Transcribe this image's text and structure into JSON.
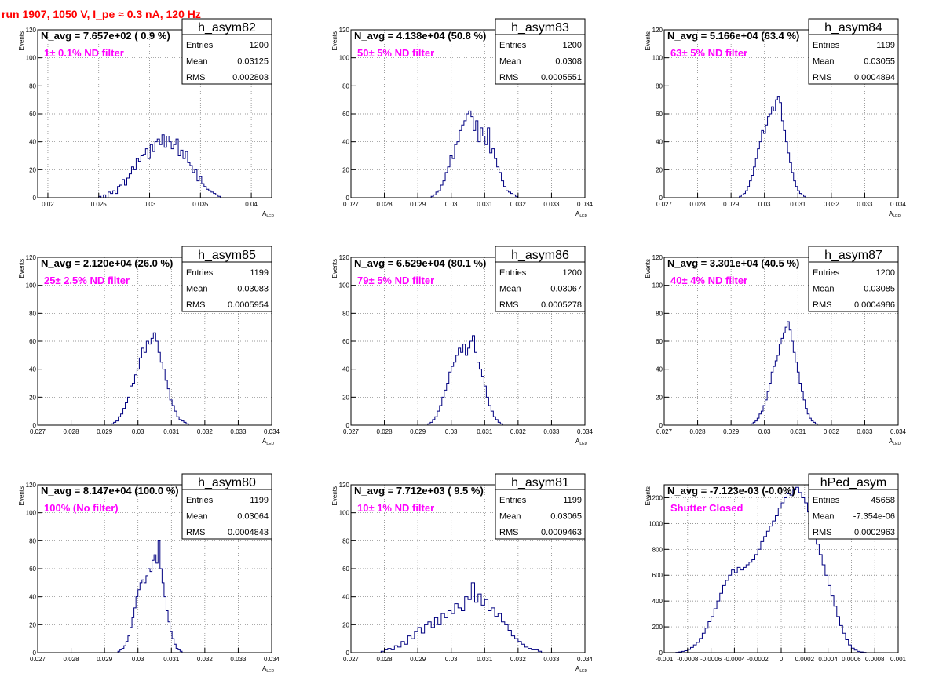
{
  "header": {
    "title": "run 1907,  1050 V, I_pe ≈ 0.3 nA, 120 Hz",
    "title_color": "#ff0000"
  },
  "colors": {
    "histogram": "#000080",
    "annotation": "#ff00ff",
    "grid": "#777777"
  },
  "chart_data": [
    {
      "type": "bar",
      "name": "h_asym82",
      "title": "N_avg = 7.657e+02 ( 0.9 %)",
      "annotation": "1± 0.1% ND filter",
      "xlabel": "A",
      "xlabel_sub": "LED",
      "ylabel": "Events",
      "xlim": [
        0.019,
        0.042
      ],
      "ylim": [
        0,
        120
      ],
      "xticks": [
        0.02,
        0.025,
        0.03,
        0.035,
        0.04
      ],
      "xtick_labels": [
        "0.02",
        "0.025",
        "0.03",
        "0.035",
        "0.04"
      ],
      "yticks": [
        0,
        20,
        40,
        60,
        80,
        100,
        120
      ],
      "ytick_labels": [
        "0",
        "20",
        "40",
        "60",
        "80",
        "100",
        "120"
      ],
      "stats": {
        "entries": "1200",
        "mean": "0.03125",
        "rms": "0.002803"
      },
      "bin_start": 0.025,
      "bin_width": 0.00023,
      "values": [
        1,
        0,
        2,
        0,
        4,
        3,
        5,
        3,
        8,
        9,
        13,
        9,
        14,
        17,
        22,
        20,
        28,
        26,
        30,
        31,
        35,
        28,
        38,
        33,
        40,
        42,
        38,
        45,
        36,
        44,
        40,
        35,
        38,
        42,
        30,
        34,
        28,
        33,
        25,
        23,
        18,
        20,
        12,
        15,
        10,
        8,
        6,
        5,
        4,
        3,
        2,
        1
      ]
    },
    {
      "type": "bar",
      "name": "h_asym83",
      "title": "N_avg = 4.138e+04 (50.8 %)",
      "annotation": "50± 5% ND filter",
      "xlabel": "A",
      "xlabel_sub": "LED",
      "ylabel": "Events",
      "xlim": [
        0.027,
        0.034
      ],
      "ylim": [
        0,
        120
      ],
      "xticks": [
        0.027,
        0.028,
        0.029,
        0.03,
        0.031,
        0.032,
        0.033,
        0.034
      ],
      "xtick_labels": [
        "0.027",
        "0.028",
        "0.029",
        "0.03",
        "0.031",
        "0.032",
        "0.033",
        "0.034"
      ],
      "yticks": [
        0,
        20,
        40,
        60,
        80,
        100,
        120
      ],
      "ytick_labels": [
        "0",
        "20",
        "40",
        "60",
        "80",
        "100",
        "120"
      ],
      "stats": {
        "entries": "1200",
        "mean": "0.0308",
        "rms": "0.0005551"
      },
      "bin_start": 0.0294,
      "bin_width": 7e-05,
      "values": [
        1,
        2,
        4,
        5,
        9,
        12,
        18,
        22,
        30,
        28,
        38,
        40,
        48,
        52,
        55,
        60,
        62,
        58,
        48,
        55,
        40,
        50,
        44,
        38,
        50,
        32,
        35,
        28,
        22,
        18,
        12,
        8,
        5,
        4,
        3,
        2,
        1
      ]
    },
    {
      "type": "bar",
      "name": "h_asym84",
      "title": "N_avg = 5.166e+04 (63.4 %)",
      "annotation": "63± 5% ND filter",
      "xlabel": "A",
      "xlabel_sub": "LED",
      "ylabel": "Events",
      "xlim": [
        0.027,
        0.034
      ],
      "ylim": [
        0,
        120
      ],
      "xticks": [
        0.027,
        0.028,
        0.029,
        0.03,
        0.031,
        0.032,
        0.033,
        0.034
      ],
      "xtick_labels": [
        "0.027",
        "0.028",
        "0.029",
        "0.03",
        "0.031",
        "0.032",
        "0.033",
        "0.034"
      ],
      "yticks": [
        0,
        20,
        40,
        60,
        80,
        100,
        120
      ],
      "ytick_labels": [
        "0",
        "20",
        "40",
        "60",
        "80",
        "100",
        "120"
      ],
      "stats": {
        "entries": "1199",
        "mean": "0.03055",
        "rms": "0.0004894"
      },
      "bin_start": 0.02925,
      "bin_width": 6e-05,
      "values": [
        1,
        2,
        3,
        5,
        8,
        12,
        16,
        22,
        28,
        35,
        40,
        48,
        46,
        52,
        58,
        60,
        65,
        62,
        70,
        72,
        68,
        55,
        48,
        40,
        32,
        25,
        18,
        12,
        8,
        5,
        3,
        2,
        1
      ]
    },
    {
      "type": "bar",
      "name": "h_asym85",
      "title": "N_avg = 2.120e+04 (26.0 %)",
      "annotation": "25± 2.5% ND filter",
      "xlabel": "A",
      "xlabel_sub": "LED",
      "ylabel": "Events",
      "xlim": [
        0.027,
        0.034
      ],
      "ylim": [
        0,
        120
      ],
      "xticks": [
        0.027,
        0.028,
        0.029,
        0.03,
        0.031,
        0.032,
        0.033,
        0.034
      ],
      "xtick_labels": [
        "0.027",
        "0.028",
        "0.029",
        "0.03",
        "0.031",
        "0.032",
        "0.033",
        "0.034"
      ],
      "yticks": [
        0,
        20,
        40,
        60,
        80,
        100,
        120
      ],
      "ytick_labels": [
        "0",
        "20",
        "40",
        "60",
        "80",
        "100",
        "120"
      ],
      "stats": {
        "entries": "1199",
        "mean": "0.03083",
        "rms": "0.0005954"
      },
      "bin_start": 0.0292,
      "bin_width": 7e-05,
      "values": [
        1,
        2,
        3,
        6,
        8,
        12,
        16,
        20,
        28,
        30,
        36,
        40,
        48,
        55,
        52,
        60,
        58,
        62,
        66,
        60,
        52,
        45,
        40,
        32,
        26,
        18,
        14,
        10,
        6,
        4,
        3,
        2,
        1
      ]
    },
    {
      "type": "bar",
      "name": "h_asym86",
      "title": "N_avg = 6.529e+04 (80.1 %)",
      "annotation": "79± 5% ND filter",
      "xlabel": "A",
      "xlabel_sub": "LED",
      "ylabel": "Events",
      "xlim": [
        0.027,
        0.034
      ],
      "ylim": [
        0,
        120
      ],
      "xticks": [
        0.027,
        0.028,
        0.029,
        0.03,
        0.031,
        0.032,
        0.033,
        0.034
      ],
      "xtick_labels": [
        "0.027",
        "0.028",
        "0.029",
        "0.03",
        "0.031",
        "0.032",
        "0.033",
        "0.034"
      ],
      "yticks": [
        0,
        20,
        40,
        60,
        80,
        100,
        120
      ],
      "ytick_labels": [
        "0",
        "20",
        "40",
        "60",
        "80",
        "100",
        "120"
      ],
      "stats": {
        "entries": "1200",
        "mean": "0.03067",
        "rms": "0.0005278"
      },
      "bin_start": 0.0293,
      "bin_width": 7e-05,
      "values": [
        1,
        2,
        4,
        6,
        10,
        14,
        20,
        25,
        30,
        38,
        42,
        45,
        50,
        55,
        52,
        58,
        50,
        55,
        60,
        64,
        52,
        45,
        40,
        35,
        28,
        20,
        14,
        10,
        6,
        4,
        2,
        1
      ]
    },
    {
      "type": "bar",
      "name": "h_asym87",
      "title": "N_avg = 3.301e+04 (40.5 %)",
      "annotation": "40± 4% ND filter",
      "xlabel": "A",
      "xlabel_sub": "LED",
      "ylabel": "Events",
      "xlim": [
        0.027,
        0.034
      ],
      "ylim": [
        0,
        120
      ],
      "xticks": [
        0.027,
        0.028,
        0.029,
        0.03,
        0.031,
        0.032,
        0.033,
        0.034
      ],
      "xtick_labels": [
        "0.027",
        "0.028",
        "0.029",
        "0.03",
        "0.031",
        "0.032",
        "0.033",
        "0.034"
      ],
      "yticks": [
        0,
        20,
        40,
        60,
        80,
        100,
        120
      ],
      "ytick_labels": [
        "0",
        "20",
        "40",
        "60",
        "80",
        "100",
        "120"
      ],
      "stats": {
        "entries": "1200",
        "mean": "0.03085",
        "rms": "0.0004986"
      },
      "bin_start": 0.0296,
      "bin_width": 6e-05,
      "values": [
        1,
        2,
        3,
        5,
        8,
        10,
        14,
        18,
        24,
        30,
        38,
        42,
        46,
        50,
        58,
        62,
        66,
        70,
        74,
        68,
        60,
        52,
        45,
        38,
        30,
        24,
        18,
        12,
        8,
        5,
        3,
        2,
        1
      ]
    },
    {
      "type": "bar",
      "name": "h_asym80",
      "title": "N_avg = 8.147e+04 (100.0 %)",
      "annotation": "100% (No filter)",
      "xlabel": "A",
      "xlabel_sub": "LED",
      "ylabel": "Events",
      "xlim": [
        0.027,
        0.034
      ],
      "ylim": [
        0,
        120
      ],
      "xticks": [
        0.027,
        0.028,
        0.029,
        0.03,
        0.031,
        0.032,
        0.033,
        0.034
      ],
      "xtick_labels": [
        "0.027",
        "0.028",
        "0.029",
        "0.03",
        "0.031",
        "0.032",
        "0.033",
        "0.034"
      ],
      "yticks": [
        0,
        20,
        40,
        60,
        80,
        100,
        120
      ],
      "ytick_labels": [
        "0",
        "20",
        "40",
        "60",
        "80",
        "100",
        "120"
      ],
      "stats": {
        "entries": "1199",
        "mean": "0.03064",
        "rms": "0.0004843"
      },
      "bin_start": 0.0294,
      "bin_width": 6e-05,
      "values": [
        1,
        2,
        3,
        5,
        8,
        12,
        18,
        25,
        32,
        40,
        45,
        50,
        52,
        50,
        55,
        60,
        58,
        66,
        70,
        64,
        80,
        60,
        50,
        40,
        30,
        22,
        15,
        10,
        6,
        3,
        2,
        1
      ]
    },
    {
      "type": "bar",
      "name": "h_asym81",
      "title": "N_avg = 7.712e+03 ( 9.5 %)",
      "annotation": "10± 1% ND filter",
      "xlabel": "A",
      "xlabel_sub": "LED",
      "ylabel": "Events",
      "xlim": [
        0.027,
        0.034
      ],
      "ylim": [
        0,
        120
      ],
      "xticks": [
        0.027,
        0.028,
        0.029,
        0.03,
        0.031,
        0.032,
        0.033,
        0.034
      ],
      "xtick_labels": [
        "0.027",
        "0.028",
        "0.029",
        "0.03",
        "0.031",
        "0.032",
        "0.033",
        "0.034"
      ],
      "yticks": [
        0,
        20,
        40,
        60,
        80,
        100,
        120
      ],
      "ytick_labels": [
        "0",
        "20",
        "40",
        "60",
        "80",
        "100",
        "120"
      ],
      "stats": {
        "entries": "1199",
        "mean": "0.03065",
        "rms": "0.0009463"
      },
      "bin_start": 0.0279,
      "bin_width": 0.0001,
      "values": [
        1,
        2,
        3,
        2,
        5,
        4,
        8,
        6,
        12,
        10,
        15,
        18,
        14,
        20,
        22,
        18,
        25,
        20,
        28,
        25,
        30,
        28,
        35,
        32,
        30,
        40,
        38,
        50,
        36,
        42,
        34,
        38,
        30,
        32,
        26,
        28,
        22,
        20,
        16,
        12,
        10,
        8,
        6,
        4,
        3,
        2,
        2,
        1
      ]
    },
    {
      "type": "bar",
      "name": "hPed_asym",
      "title": "N_avg = -7.123e-03 (-0.0%)",
      "annotation": "Shutter Closed",
      "xlabel": "",
      "xlabel_sub": "",
      "ylabel": "Events",
      "xlim": [
        -0.001,
        0.001
      ],
      "ylim": [
        0,
        1300
      ],
      "xticks": [
        -0.001,
        -0.0008,
        -0.0006,
        -0.0004,
        -0.0002,
        0,
        0.0002,
        0.0004,
        0.0006,
        0.0008,
        0.001
      ],
      "xtick_labels": [
        "-0.001",
        "-0.0008",
        "-0.0006",
        "-0.0004",
        "-0.0002",
        "0",
        "0.0002",
        "0.0004",
        "0.0006",
        "0.0008",
        "0.001"
      ],
      "yticks": [
        0,
        200,
        400,
        600,
        800,
        1000,
        1200
      ],
      "ytick_labels": [
        "0",
        "200",
        "400",
        "600",
        "800",
        "1000",
        "1200"
      ],
      "stats": {
        "entries": "45658",
        "mean": "-7.354e-06",
        "rms": "0.0002963"
      },
      "bin_start": -0.0009,
      "bin_width": 2.5e-05,
      "values": [
        2,
        5,
        10,
        15,
        25,
        40,
        60,
        80,
        110,
        150,
        190,
        240,
        280,
        340,
        400,
        460,
        520,
        560,
        600,
        640,
        620,
        660,
        640,
        660,
        680,
        700,
        720,
        760,
        800,
        860,
        900,
        940,
        980,
        1020,
        1060,
        1120,
        1160,
        1200,
        1230,
        1220,
        1260,
        1280,
        1240,
        1200,
        1160,
        1090,
        1000,
        920,
        840,
        760,
        680,
        600,
        520,
        440,
        360,
        280,
        210,
        150,
        100,
        60,
        35,
        20,
        10,
        5,
        2
      ]
    }
  ]
}
